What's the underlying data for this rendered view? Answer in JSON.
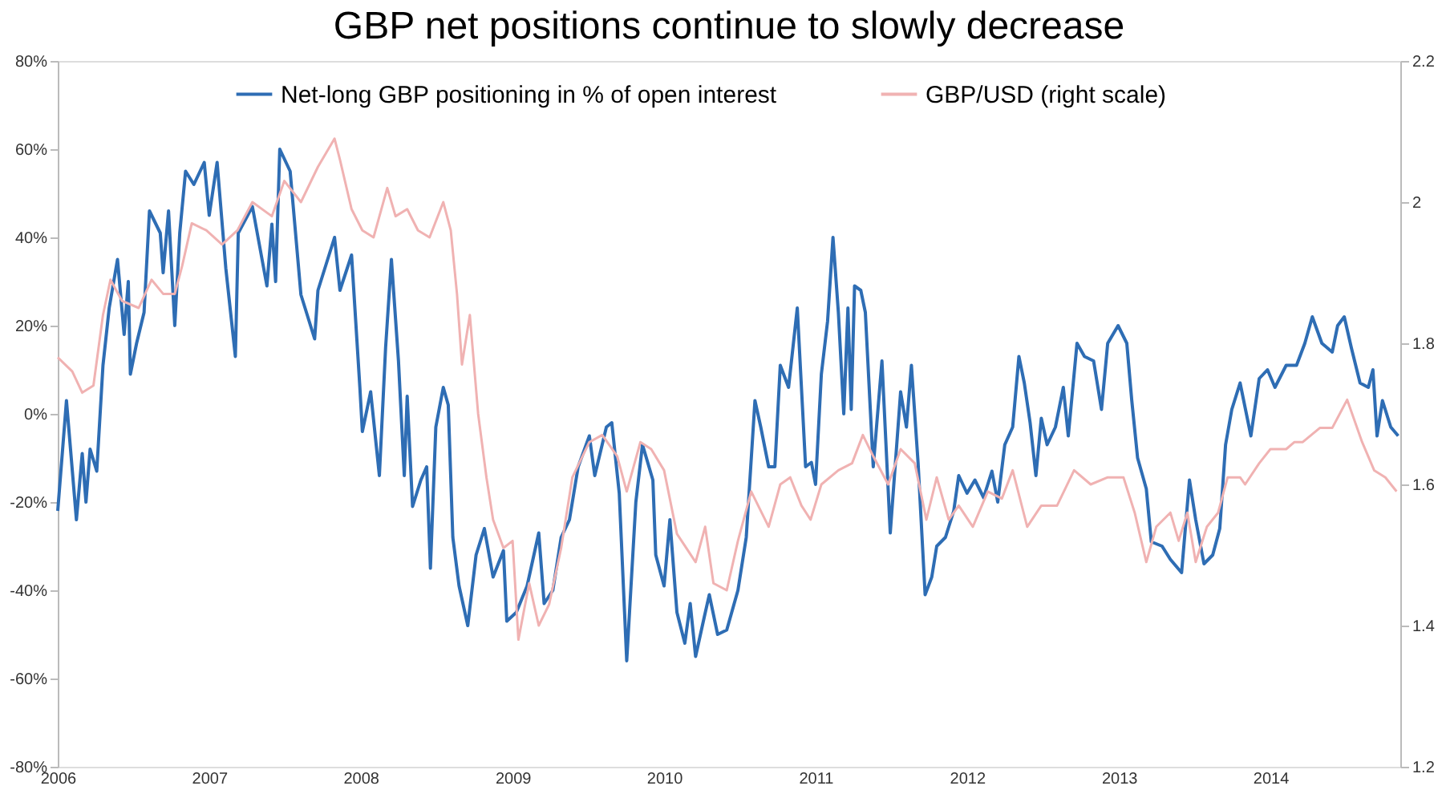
{
  "chart_data": {
    "type": "line",
    "title": "GBP net positions continue to slowly decrease",
    "xlim": [
      "2006-01-01",
      "2014-11-10"
    ],
    "xticks": [
      "2006",
      "2007",
      "2008",
      "2009",
      "2010",
      "2011",
      "2012",
      "2013",
      "2014"
    ],
    "ylim": [
      -80,
      80
    ],
    "yticks": [
      {
        "value": -80,
        "label": "-80%"
      },
      {
        "value": -60,
        "label": "-60%"
      },
      {
        "value": -40,
        "label": "-40%"
      },
      {
        "value": -20,
        "label": "-20%"
      },
      {
        "value": 0,
        "label": "0%"
      },
      {
        "value": 20,
        "label": "20%"
      },
      {
        "value": 40,
        "label": "40%"
      },
      {
        "value": 60,
        "label": "60%"
      },
      {
        "value": 80,
        "label": "80%"
      }
    ],
    "y2lim": [
      1.2,
      2.2
    ],
    "y2ticks": [
      1.2,
      1.4,
      1.6,
      1.8,
      2,
      2.2
    ],
    "grid": false,
    "legend": "top",
    "line_style": "solid",
    "marker": "none",
    "series": [
      {
        "name": "Net-long GBP positioning in % of open interest",
        "color": "#2e6db4",
        "x": [
          "2006-01-01",
          "2006-01-22",
          "2006-02-15",
          "2006-03-01",
          "2006-03-10",
          "2006-03-20",
          "2006-04-05",
          "2006-04-20",
          "2006-05-05",
          "2006-05-25",
          "2006-06-10",
          "2006-06-20",
          "2006-06-25",
          "2006-07-10",
          "2006-07-28",
          "2006-08-10",
          "2006-09-05",
          "2006-09-12",
          "2006-09-25",
          "2006-10-10",
          "2006-10-22",
          "2006-11-05",
          "2006-11-25",
          "2006-12-20",
          "2007-01-01",
          "2007-01-20",
          "2007-02-10",
          "2007-03-05",
          "2007-03-12",
          "2007-04-15",
          "2007-05-20",
          "2007-06-01",
          "2007-06-10",
          "2007-06-20",
          "2007-07-15",
          "2007-08-10",
          "2007-09-12",
          "2007-09-20",
          "2007-10-30",
          "2007-11-12",
          "2007-12-10",
          "2007-12-30",
          "2008-01-05",
          "2008-01-25",
          "2008-02-15",
          "2008-03-01",
          "2008-03-15",
          "2008-04-01",
          "2008-04-15",
          "2008-04-22",
          "2008-05-05",
          "2008-05-25",
          "2008-06-08",
          "2008-06-17",
          "2008-06-30",
          "2008-07-18",
          "2008-07-30",
          "2008-08-10",
          "2008-08-25",
          "2008-09-15",
          "2008-10-05",
          "2008-10-25",
          "2008-11-15",
          "2008-12-10",
          "2008-12-18",
          "2009-01-10",
          "2009-02-05",
          "2009-03-05",
          "2009-03-18",
          "2009-04-08",
          "2009-04-28",
          "2009-05-18",
          "2009-06-08",
          "2009-07-05",
          "2009-07-18",
          "2009-08-15",
          "2009-08-28",
          "2009-09-15",
          "2009-10-03",
          "2009-10-25",
          "2009-11-10",
          "2009-12-05",
          "2009-12-12",
          "2010-01-01",
          "2010-01-15",
          "2010-02-01",
          "2010-02-20",
          "2010-03-05",
          "2010-03-18",
          "2010-04-08",
          "2010-04-20",
          "2010-05-10",
          "2010-06-01",
          "2010-06-28",
          "2010-07-18",
          "2010-08-08",
          "2010-08-22",
          "2010-09-10",
          "2010-09-25",
          "2010-10-08",
          "2010-10-28",
          "2010-11-18",
          "2010-12-08",
          "2010-12-22",
          "2011-01-01",
          "2011-01-15",
          "2011-01-30",
          "2011-02-12",
          "2011-02-25",
          "2011-03-10",
          "2011-03-20",
          "2011-03-28",
          "2011-04-05",
          "2011-04-20",
          "2011-05-01",
          "2011-05-20",
          "2011-06-10",
          "2011-06-30",
          "2011-07-25",
          "2011-08-08",
          "2011-08-20",
          "2011-09-05",
          "2011-09-22",
          "2011-10-08",
          "2011-10-20",
          "2011-11-10",
          "2011-11-30",
          "2011-12-12",
          "2012-01-01",
          "2012-01-20",
          "2012-02-10",
          "2012-03-01",
          "2012-03-15",
          "2012-04-01",
          "2012-04-20",
          "2012-05-05",
          "2012-05-18",
          "2012-06-01",
          "2012-06-15",
          "2012-06-28",
          "2012-07-12",
          "2012-08-01",
          "2012-08-20",
          "2012-09-01",
          "2012-09-22",
          "2012-10-10",
          "2012-11-01",
          "2012-11-20",
          "2012-12-05",
          "2012-12-30",
          "2013-01-20",
          "2013-02-01",
          "2013-02-15",
          "2013-03-08",
          "2013-03-20",
          "2013-04-15",
          "2013-05-05",
          "2013-06-01",
          "2013-06-20",
          "2013-07-05",
          "2013-07-25",
          "2013-08-15",
          "2013-09-01",
          "2013-09-15",
          "2013-09-30",
          "2013-10-20",
          "2013-11-15",
          "2013-12-05",
          "2013-12-25",
          "2014-01-12",
          "2014-02-08",
          "2014-03-05",
          "2014-03-25",
          "2014-04-12",
          "2014-05-05",
          "2014-05-30",
          "2014-06-12",
          "2014-06-28",
          "2014-07-15",
          "2014-08-05",
          "2014-08-25",
          "2014-09-05",
          "2014-09-15",
          "2014-09-28",
          "2014-10-18",
          "2014-11-05"
        ],
        "values": [
          -22,
          3,
          -24,
          -9,
          -20,
          -8,
          -13,
          11,
          24,
          35,
          18,
          30,
          9,
          16,
          23,
          46,
          41,
          32,
          46,
          20,
          41,
          55,
          52,
          57,
          45,
          57,
          33,
          13,
          41,
          47,
          29,
          43,
          30,
          60,
          55,
          27,
          17,
          28,
          40,
          28,
          36,
          6,
          -4,
          5,
          -14,
          15,
          35,
          12,
          -14,
          4,
          -21,
          -15,
          -12,
          -35,
          -3,
          6,
          2,
          -28,
          -39,
          -48,
          -32,
          -26,
          -37,
          -31,
          -47,
          -45,
          -39,
          -27,
          -43,
          -40,
          -28,
          -24,
          -12,
          -5,
          -14,
          -3,
          -2,
          -18,
          -56,
          -20,
          -7,
          -15,
          -32,
          -39,
          -24,
          -45,
          -52,
          -43,
          -55,
          -46,
          -41,
          -50,
          -49,
          -40,
          -28,
          3,
          -3,
          -12,
          -12,
          11,
          6,
          24,
          -12,
          -11,
          -16,
          9,
          21,
          40,
          23,
          0,
          24,
          1,
          29,
          28,
          23,
          -12,
          12,
          -27,
          5,
          -3,
          11,
          -11,
          -41,
          -37,
          -30,
          -28,
          -22,
          -14,
          -18,
          -15,
          -19,
          -13,
          -20,
          -7,
          -3,
          13,
          7,
          -2,
          -14,
          -1,
          -7,
          -3,
          6,
          -5,
          16,
          13,
          12,
          1,
          16,
          20,
          16,
          3,
          -10,
          -17,
          -29,
          -30,
          -33,
          -36,
          -15,
          -24,
          -34,
          -32,
          -26,
          -7,
          1,
          7,
          -5,
          8,
          10,
          6,
          11,
          11,
          16,
          22,
          16,
          14,
          20,
          22,
          15,
          7,
          6,
          10,
          -5,
          3,
          -3,
          -5
        ]
      },
      {
        "name": "GBP/USD (right scale)",
        "color": "#f0b2b2",
        "axis": "y2",
        "x": [
          "2006-01-01",
          "2006-02-05",
          "2006-03-01",
          "2006-03-28",
          "2006-04-20",
          "2006-05-08",
          "2006-06-05",
          "2006-07-15",
          "2006-08-15",
          "2006-09-12",
          "2006-10-10",
          "2006-10-28",
          "2006-11-20",
          "2006-12-25",
          "2007-02-01",
          "2007-03-10",
          "2007-04-15",
          "2007-06-01",
          "2007-07-01",
          "2007-08-10",
          "2007-09-20",
          "2007-10-30",
          "2007-11-12",
          "2007-12-10",
          "2008-01-05",
          "2008-02-01",
          "2008-03-05",
          "2008-03-25",
          "2008-04-22",
          "2008-05-18",
          "2008-06-15",
          "2008-07-18",
          "2008-08-05",
          "2008-08-20",
          "2008-09-01",
          "2008-09-20",
          "2008-10-10",
          "2008-10-30",
          "2008-11-15",
          "2008-12-10",
          "2009-01-01",
          "2009-01-15",
          "2009-02-10",
          "2009-03-05",
          "2009-03-30",
          "2009-04-28",
          "2009-05-25",
          "2009-07-05",
          "2009-08-05",
          "2009-09-10",
          "2009-10-03",
          "2009-11-05",
          "2009-12-01",
          "2010-01-01",
          "2010-02-01",
          "2010-03-18",
          "2010-04-10",
          "2010-04-30",
          "2010-06-01",
          "2010-06-28",
          "2010-07-30",
          "2010-09-10",
          "2010-10-08",
          "2010-11-01",
          "2010-11-28",
          "2010-12-20",
          "2011-01-15",
          "2011-02-25",
          "2011-03-30",
          "2011-04-25",
          "2011-05-20",
          "2011-06-25",
          "2011-07-25",
          "2011-08-28",
          "2011-09-25",
          "2011-10-20",
          "2011-11-18",
          "2011-12-12",
          "2012-01-15",
          "2012-02-20",
          "2012-03-25",
          "2012-04-20",
          "2012-05-25",
          "2012-06-28",
          "2012-08-05",
          "2012-09-15",
          "2012-10-25",
          "2012-12-05",
          "2013-01-12",
          "2013-02-08",
          "2013-03-08",
          "2013-04-01",
          "2013-05-05",
          "2013-05-25",
          "2013-06-15",
          "2013-07-05",
          "2013-08-01",
          "2013-08-28",
          "2013-09-20",
          "2013-10-20",
          "2013-11-01",
          "2013-12-05",
          "2014-01-01",
          "2014-02-08",
          "2014-02-28",
          "2014-03-20",
          "2014-04-30",
          "2014-05-30",
          "2014-07-05",
          "2014-08-10",
          "2014-09-08",
          "2014-10-05",
          "2014-11-01"
        ],
        "values": [
          1.78,
          1.76,
          1.73,
          1.74,
          1.84,
          1.89,
          1.86,
          1.85,
          1.89,
          1.87,
          1.87,
          1.91,
          1.97,
          1.96,
          1.94,
          1.96,
          2.0,
          1.98,
          2.03,
          2.0,
          2.05,
          2.09,
          2.06,
          1.99,
          1.96,
          1.95,
          2.02,
          1.98,
          1.99,
          1.96,
          1.95,
          2.0,
          1.96,
          1.87,
          1.77,
          1.84,
          1.7,
          1.61,
          1.55,
          1.51,
          1.52,
          1.38,
          1.46,
          1.4,
          1.43,
          1.51,
          1.61,
          1.66,
          1.67,
          1.64,
          1.59,
          1.66,
          1.65,
          1.62,
          1.53,
          1.49,
          1.54,
          1.46,
          1.45,
          1.52,
          1.59,
          1.54,
          1.6,
          1.61,
          1.57,
          1.55,
          1.6,
          1.62,
          1.63,
          1.67,
          1.64,
          1.6,
          1.65,
          1.63,
          1.55,
          1.61,
          1.55,
          1.57,
          1.54,
          1.59,
          1.58,
          1.62,
          1.54,
          1.57,
          1.57,
          1.62,
          1.6,
          1.61,
          1.61,
          1.56,
          1.49,
          1.54,
          1.56,
          1.52,
          1.56,
          1.49,
          1.54,
          1.56,
          1.61,
          1.61,
          1.6,
          1.63,
          1.65,
          1.65,
          1.66,
          1.66,
          1.68,
          1.68,
          1.72,
          1.66,
          1.62,
          1.61,
          1.59
        ]
      }
    ]
  }
}
